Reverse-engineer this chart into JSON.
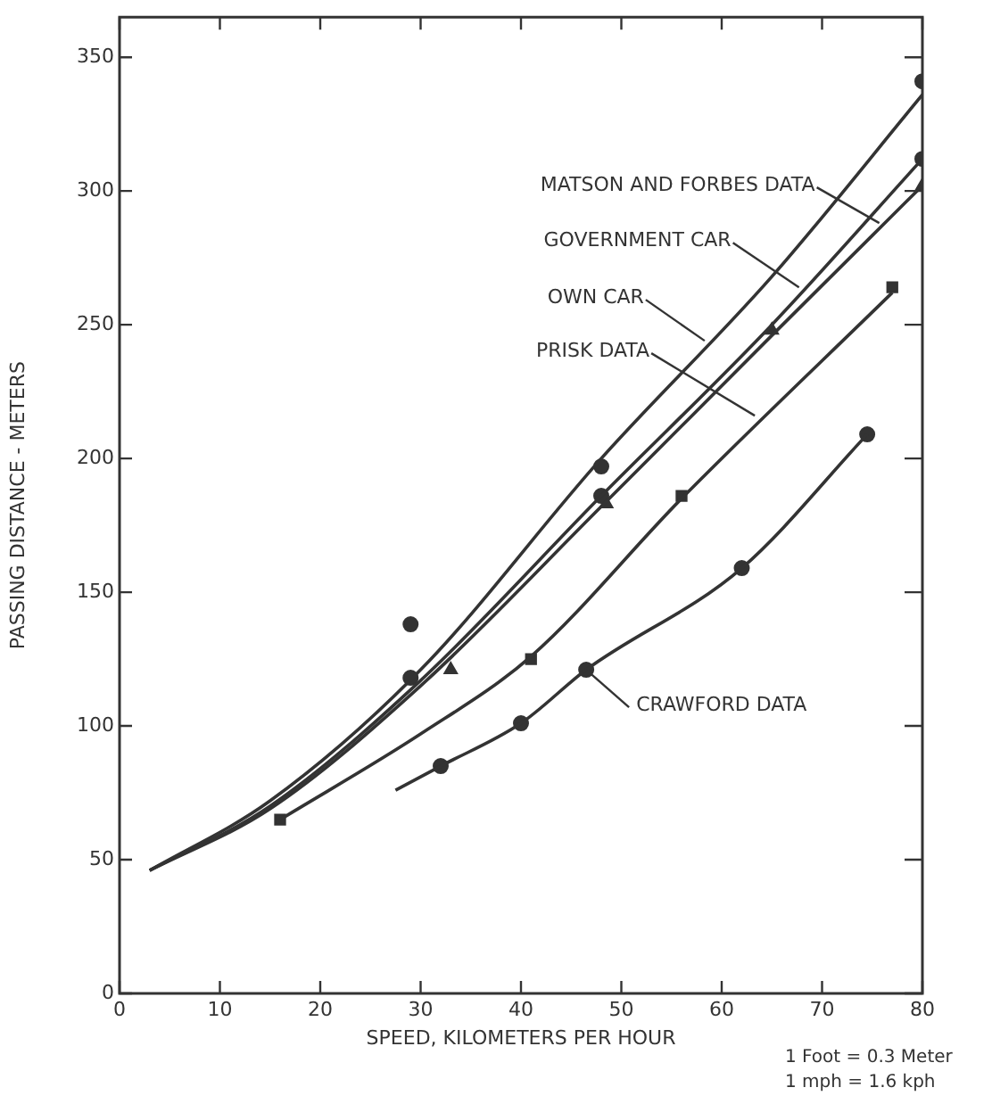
{
  "chart_data": {
    "type": "line",
    "xlabel": "SPEED, KILOMETERS PER HOUR",
    "ylabel": "PASSING DISTANCE - METERS",
    "xlim": [
      0,
      80
    ],
    "xticks": [
      0,
      10,
      20,
      30,
      40,
      50,
      60,
      70,
      80
    ],
    "ylim": [
      0,
      365
    ],
    "yticks": [
      0,
      50,
      100,
      150,
      200,
      250,
      300,
      350
    ],
    "grid": false,
    "legend": false,
    "series": [
      {
        "marker": "none",
        "color": "#333333",
        "x": [
          3,
          15,
          30,
          48,
          65,
          80
        ],
        "values": [
          46,
          72,
          121,
          200,
          268,
          336
        ]
      },
      {
        "marker": "none",
        "color": "#333333",
        "x": [
          3,
          15,
          30,
          48,
          65,
          80
        ],
        "values": [
          46,
          70,
          117,
          186,
          250,
          312
        ]
      },
      {
        "marker": "none",
        "color": "#333333",
        "x": [
          3,
          15,
          30,
          48,
          65,
          80
        ],
        "values": [
          46,
          69,
          115,
          182,
          246,
          302
        ]
      },
      {
        "marker": "none",
        "color": "#333333",
        "x": [
          16,
          30,
          41,
          56,
          77
        ],
        "values": [
          65,
          97,
          126,
          185,
          262
        ]
      },
      {
        "marker": "none",
        "color": "#333333",
        "x": [
          27.5,
          32,
          40,
          46.5,
          62,
          74.5
        ],
        "values": [
          76,
          85,
          101,
          121,
          159,
          209
        ]
      },
      {
        "type": "scatter",
        "marker": "circle",
        "color": "#333333",
        "x": [
          29,
          48,
          80
        ],
        "values": [
          138,
          197,
          341
        ]
      },
      {
        "type": "scatter",
        "marker": "circle",
        "color": "#333333",
        "x": [
          29,
          48,
          80
        ],
        "values": [
          118,
          186,
          312
        ]
      },
      {
        "type": "scatter",
        "marker": "triangle",
        "color": "#333333",
        "x": [
          33,
          48.5,
          65,
          80
        ],
        "values": [
          121,
          183,
          248,
          302
        ]
      },
      {
        "type": "scatter",
        "marker": "square",
        "color": "#333333",
        "x": [
          16,
          41,
          56,
          77
        ],
        "values": [
          65,
          125,
          186,
          264
        ]
      },
      {
        "type": "scatter",
        "marker": "circle",
        "color": "#333333",
        "x": [
          32,
          40,
          46.5,
          62,
          74.5
        ],
        "values": [
          85,
          101,
          121,
          159,
          209
        ]
      }
    ],
    "annotations": [
      {
        "text": "MATSON AND FORBES DATA",
        "x": 75.7,
        "y": 288
      },
      {
        "text": "GOVERNMENT CAR",
        "x": 67.7,
        "y": 264
      },
      {
        "text": "OWN CAR",
        "x": 58.3,
        "y": 244
      },
      {
        "text": "PRISK DATA",
        "x": 63.3,
        "y": 216
      },
      {
        "text": "CRAWFORD DATA",
        "x": 46.5,
        "y": 121
      },
      "1 Foot = 0.3 Meter",
      "1 mph = 1.6 kph"
    ]
  }
}
